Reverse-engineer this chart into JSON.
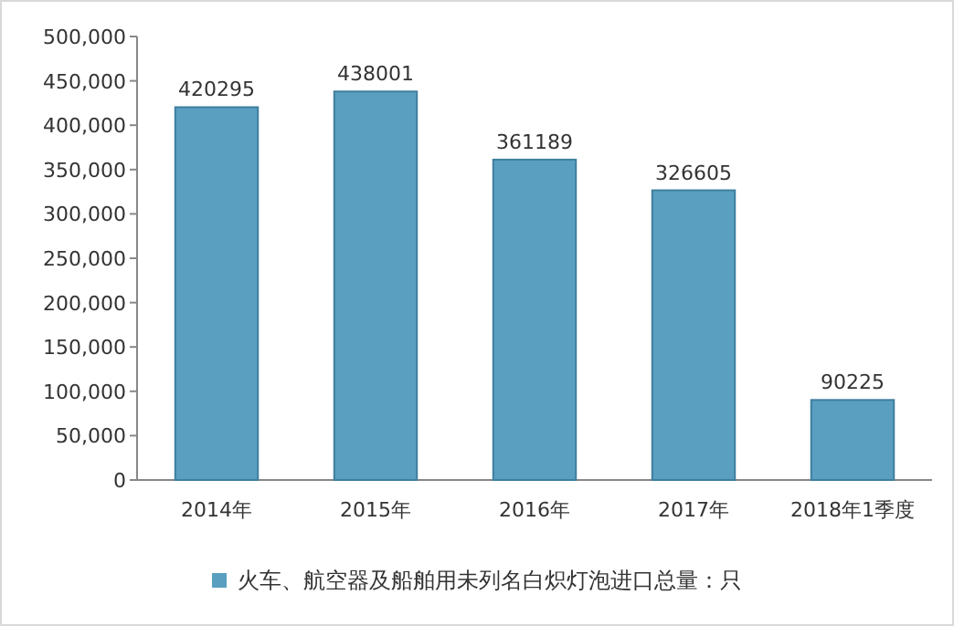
{
  "chart_data": {
    "type": "bar",
    "categories": [
      "2014年",
      "2015年",
      "2016年",
      "2017年",
      "2018年1季度"
    ],
    "series": [
      {
        "name": "火车、航空器及船舶用未列名白炽灯泡进口总量：只",
        "color": "#5a9fc0",
        "values": [
          420295,
          438001,
          361189,
          326605,
          90225
        ]
      }
    ],
    "ylim": [
      0,
      500000
    ],
    "yticks": [
      {
        "value": 0,
        "label": "0"
      },
      {
        "value": 50000,
        "label": "50,000"
      },
      {
        "value": 100000,
        "label": "100,000"
      },
      {
        "value": 150000,
        "label": "150,000"
      },
      {
        "value": 200000,
        "label": "200,000"
      },
      {
        "value": 250000,
        "label": "250,000"
      },
      {
        "value": 300000,
        "label": "300,000"
      },
      {
        "value": 350000,
        "label": "350,000"
      },
      {
        "value": 400000,
        "label": "400,000"
      },
      {
        "value": 450000,
        "label": "450,000"
      },
      {
        "value": 500000,
        "label": "500,000"
      }
    ],
    "data_labels": true,
    "grid": false,
    "legend": "bottom"
  }
}
